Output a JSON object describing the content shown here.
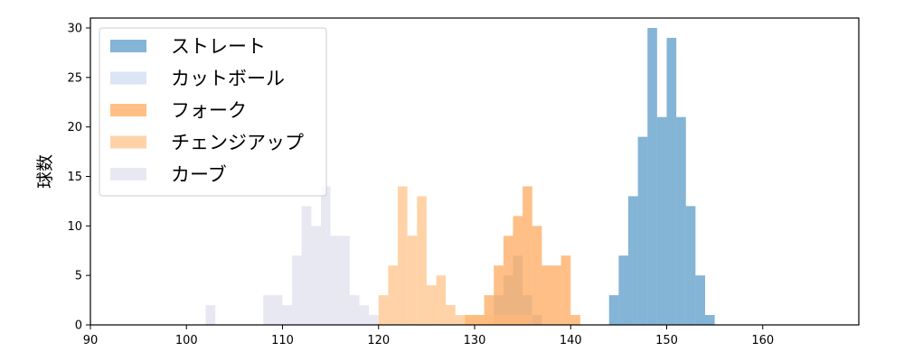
{
  "chart_data": {
    "type": "histogram",
    "title": "",
    "xlabel": "",
    "ylabel": "球数",
    "xlim": [
      90,
      170
    ],
    "ylim": [
      0,
      31
    ],
    "xticks": [
      90,
      100,
      110,
      120,
      130,
      140,
      150,
      160
    ],
    "yticks": [
      0,
      5,
      10,
      15,
      20,
      25,
      30
    ],
    "bin_width": 1,
    "grid": false,
    "legend_position": "top-left",
    "series": [
      {
        "name": "ストレート",
        "color": "#1f77b4",
        "opacity": 0.55,
        "bins": [
          [
            144,
            3
          ],
          [
            145,
            7
          ],
          [
            146,
            13
          ],
          [
            147,
            19
          ],
          [
            148,
            30
          ],
          [
            149,
            21
          ],
          [
            150,
            29
          ],
          [
            151,
            21
          ],
          [
            152,
            12
          ],
          [
            153,
            5
          ],
          [
            154,
            1
          ]
        ]
      },
      {
        "name": "カットボール",
        "color": "#aec7e8",
        "opacity": 0.45,
        "bins": [
          [
            132,
            3
          ],
          [
            133,
            5
          ],
          [
            134,
            7
          ],
          [
            135,
            3
          ],
          [
            136,
            1
          ]
        ]
      },
      {
        "name": "フォーク",
        "color": "#ff7f0e",
        "opacity": 0.5,
        "bins": [
          [
            129,
            1
          ],
          [
            130,
            1
          ],
          [
            131,
            3
          ],
          [
            132,
            6
          ],
          [
            133,
            9
          ],
          [
            134,
            11
          ],
          [
            135,
            14
          ],
          [
            136,
            10
          ],
          [
            137,
            6
          ],
          [
            138,
            6
          ],
          [
            139,
            7
          ],
          [
            140,
            1
          ]
        ]
      },
      {
        "name": "チェンジアップ",
        "color": "#ffbb78",
        "opacity": 0.65,
        "bins": [
          [
            120,
            3
          ],
          [
            121,
            6
          ],
          [
            122,
            14
          ],
          [
            123,
            9
          ],
          [
            124,
            13
          ],
          [
            125,
            4
          ],
          [
            126,
            5
          ],
          [
            127,
            2
          ],
          [
            128,
            1
          ],
          [
            129,
            1
          ],
          [
            130,
            1
          ],
          [
            131,
            1
          ],
          [
            132,
            1
          ],
          [
            133,
            1
          ],
          [
            134,
            1
          ],
          [
            135,
            1
          ]
        ]
      },
      {
        "name": "カーブ",
        "color": "#c5c5e2",
        "opacity": 0.4,
        "bins": [
          [
            102,
            2
          ],
          [
            108,
            3
          ],
          [
            109,
            3
          ],
          [
            110,
            2
          ],
          [
            111,
            7
          ],
          [
            112,
            12
          ],
          [
            113,
            10
          ],
          [
            114,
            14
          ],
          [
            115,
            9
          ],
          [
            116,
            9
          ],
          [
            117,
            3
          ],
          [
            118,
            2
          ],
          [
            119,
            1
          ]
        ]
      }
    ]
  }
}
